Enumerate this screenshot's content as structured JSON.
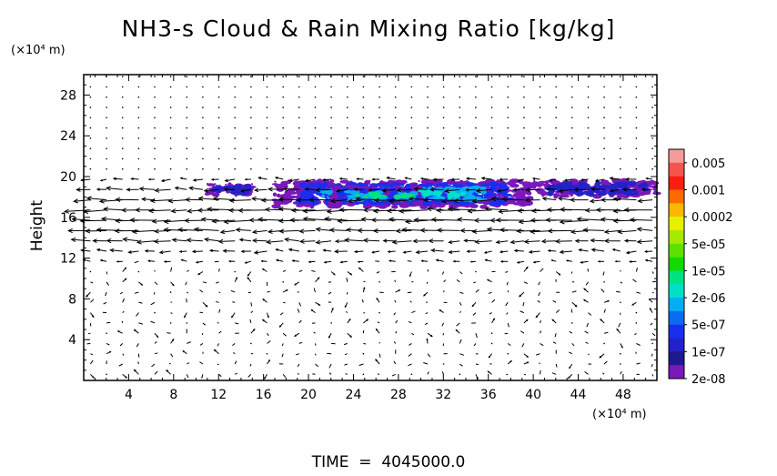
{
  "chart_data": {
    "type": "heatmap",
    "title": "NH3-s Cloud & Rain Mixing Ratio [kg/kg]",
    "ylabel": "Height",
    "y_unit_label": "(×10⁴ m)",
    "x_unit_label": "(×10⁴ m)",
    "xlim": [
      0,
      51
    ],
    "ylim": [
      0,
      30
    ],
    "x_ticks": [
      "4",
      "8",
      "12",
      "16",
      "20",
      "24",
      "28",
      "32",
      "36",
      "40",
      "44",
      "48"
    ],
    "y_ticks": [
      "4",
      "8",
      "12",
      "16",
      "20",
      "24",
      "28"
    ],
    "x_tick_values": [
      4,
      8,
      12,
      16,
      20,
      24,
      28,
      32,
      36,
      40,
      44,
      48
    ],
    "y_tick_values": [
      4,
      8,
      12,
      16,
      20,
      24,
      28
    ],
    "colorbar": {
      "labels": [
        "0.005",
        "0.001",
        "0.0002",
        "5e-05",
        "1e-05",
        "2e-06",
        "5e-07",
        "1e-07",
        "2e-08"
      ],
      "colors": [
        "#f49b9b",
        "#f4564e",
        "#fa1e10",
        "#fb6b00",
        "#fcb700",
        "#e6f000",
        "#a6ea00",
        "#5fe100",
        "#12d900",
        "#00e27f",
        "#00e0c8",
        "#05aef4",
        "#0a6cf0",
        "#1a2ef0",
        "#2222c9",
        "#1c1a8e",
        "#7a18b8"
      ]
    },
    "cloud_regions": [
      {
        "x_range": [
          11,
          15
        ],
        "y_range": [
          18.2,
          19.2
        ],
        "max_level": "1e-07"
      },
      {
        "x_range": [
          17,
          40
        ],
        "y_range": [
          17.0,
          19.6
        ],
        "max_level": "2e-06"
      },
      {
        "x_range": [
          22,
          30
        ],
        "y_range": [
          17.2,
          19.0
        ],
        "max_level": "1e-05"
      },
      {
        "x_range": [
          27,
          30
        ],
        "y_range": [
          17.5,
          18.8
        ],
        "max_level": "5e-05"
      },
      {
        "x_range": [
          40,
          51
        ],
        "y_range": [
          18.0,
          19.6
        ],
        "max_level": "1e-07"
      }
    ],
    "wind_vectors": "dense grid of wind arrows; strong westward (leftward) flow between heights 12 and 20, weak variable flow elsewhere"
  },
  "footer": {
    "time_label": "TIME  =  4045000.0"
  }
}
